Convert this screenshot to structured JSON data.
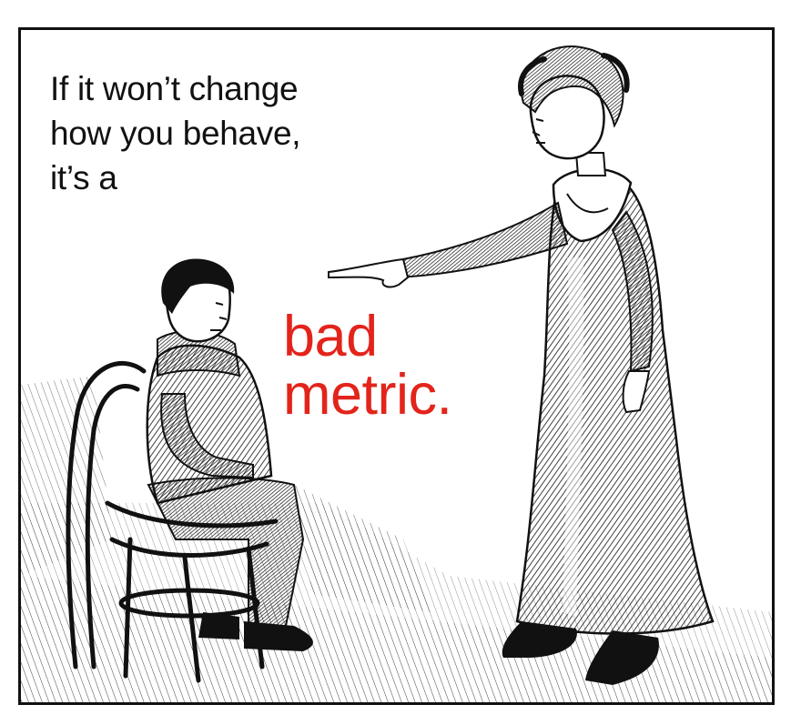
{
  "caption": {
    "line1": "If it won’t change",
    "line2": "how you behave,",
    "line3": "it’s a",
    "emphasis_line1": "bad",
    "emphasis_line2": "metric."
  },
  "colors": {
    "ink": "#111111",
    "accent": "#e3241b",
    "paper": "#ffffff"
  }
}
